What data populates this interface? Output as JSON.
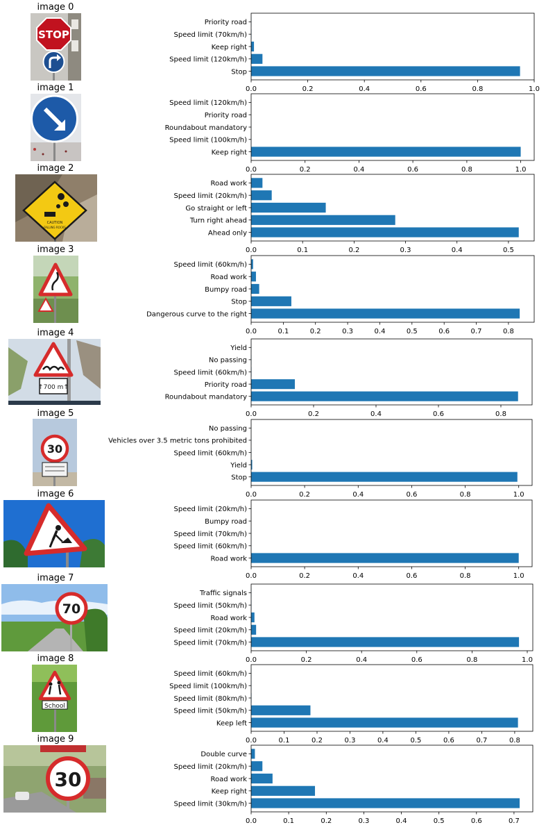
{
  "chart_data": [
    {
      "type": "bar",
      "orientation": "horizontal",
      "image_title": "image 0",
      "categories": [
        "Stop",
        "Speed limit (120km/h)",
        "Keep right",
        "Speed limit (70km/h)",
        "Priority road"
      ],
      "values": [
        0.95,
        0.04,
        0.01,
        0.001,
        0.0005
      ],
      "xlim": [
        0,
        1.0
      ],
      "xticks": [
        "0.0",
        "0.2",
        "0.4",
        "0.6",
        "0.8",
        "1.0"
      ],
      "xtick_values": [
        0.0,
        0.2,
        0.4,
        0.6,
        0.8,
        1.0
      ],
      "bar_color": "#1f77b4",
      "photo": "stop-sign-photo"
    },
    {
      "type": "bar",
      "orientation": "horizontal",
      "image_title": "image 1",
      "categories": [
        "Keep right",
        "Speed limit (100km/h)",
        "Roundabout mandatory",
        "Priority road",
        "Speed limit (120km/h)"
      ],
      "values": [
        1.0,
        0.0003,
        0.0002,
        0.0001,
        0.0001
      ],
      "xlim": [
        0,
        1.05
      ],
      "xticks": [
        "0.0",
        "0.2",
        "0.4",
        "0.6",
        "0.8",
        "1.0"
      ],
      "xtick_values": [
        0.0,
        0.2,
        0.4,
        0.6,
        0.8,
        1.0
      ],
      "bar_color": "#1f77b4",
      "photo": "keep-right-sign-photo"
    },
    {
      "type": "bar",
      "orientation": "horizontal",
      "image_title": "image 2",
      "categories": [
        "Ahead only",
        "Turn right ahead",
        "Go straight or left",
        "Speed limit (20km/h)",
        "Road work"
      ],
      "values": [
        0.52,
        0.28,
        0.145,
        0.04,
        0.022
      ],
      "xlim": [
        0,
        0.55
      ],
      "xticks": [
        "0.0",
        "0.1",
        "0.2",
        "0.3",
        "0.4",
        "0.5"
      ],
      "xtick_values": [
        0.0,
        0.1,
        0.2,
        0.3,
        0.4,
        0.5
      ],
      "bar_color": "#1f77b4",
      "photo": "falling-rocks-sign-photo"
    },
    {
      "type": "bar",
      "orientation": "horizontal",
      "image_title": "image 3",
      "categories": [
        "Dangerous curve to the right",
        "Stop",
        "Bumpy road",
        "Road work",
        "Speed limit (60km/h)"
      ],
      "values": [
        0.835,
        0.125,
        0.025,
        0.015,
        0.006
      ],
      "xlim": [
        0,
        0.88
      ],
      "xticks": [
        "0.0",
        "0.1",
        "0.2",
        "0.3",
        "0.4",
        "0.5",
        "0.6",
        "0.7",
        "0.8"
      ],
      "xtick_values": [
        0.0,
        0.1,
        0.2,
        0.3,
        0.4,
        0.5,
        0.6,
        0.7,
        0.8
      ],
      "bar_color": "#1f77b4",
      "photo": "dangerous-curve-sign-photo"
    },
    {
      "type": "bar",
      "orientation": "horizontal",
      "image_title": "image 4",
      "categories": [
        "Roundabout mandatory",
        "Priority road",
        "Speed limit (60km/h)",
        "No passing",
        "Yield"
      ],
      "values": [
        0.855,
        0.14,
        0.001,
        0.0005,
        0.0003
      ],
      "xlim": [
        0,
        0.9
      ],
      "xticks": [
        "0.0",
        "0.2",
        "0.4",
        "0.6",
        "0.8"
      ],
      "xtick_values": [
        0.0,
        0.2,
        0.4,
        0.6,
        0.8
      ],
      "bar_color": "#1f77b4",
      "photo": "bumpy-road-sign-photo"
    },
    {
      "type": "bar",
      "orientation": "horizontal",
      "image_title": "image 5",
      "categories": [
        "Stop",
        "Yield",
        "Speed limit (60km/h)",
        "Vehicles over 3.5 metric tons prohibited",
        "No passing"
      ],
      "values": [
        0.995,
        0.004,
        0.0005,
        0.0003,
        0.0002
      ],
      "xlim": [
        0,
        1.05
      ],
      "xticks": [
        "0.0",
        "0.2",
        "0.4",
        "0.6",
        "0.8",
        "1.0"
      ],
      "xtick_values": [
        0.0,
        0.2,
        0.4,
        0.6,
        0.8,
        1.0
      ],
      "bar_color": "#1f77b4",
      "photo": "speed-30-sign-photo"
    },
    {
      "type": "bar",
      "orientation": "horizontal",
      "image_title": "image 6",
      "categories": [
        "Road work",
        "Speed limit (60km/h)",
        "Speed limit (70km/h)",
        "Bumpy road",
        "Speed limit (20km/h)"
      ],
      "values": [
        1.0,
        0.0003,
        0.0002,
        0.0001,
        0.0001
      ],
      "xlim": [
        0,
        1.05
      ],
      "xticks": [
        "0.0",
        "0.2",
        "0.4",
        "0.6",
        "0.8",
        "1.0"
      ],
      "xtick_values": [
        0.0,
        0.2,
        0.4,
        0.6,
        0.8,
        1.0
      ],
      "bar_color": "#1f77b4",
      "photo": "road-work-sign-photo"
    },
    {
      "type": "bar",
      "orientation": "horizontal",
      "image_title": "image 7",
      "categories": [
        "Speed limit (70km/h)",
        "Speed limit (20km/h)",
        "Road work",
        "Speed limit (50km/h)",
        "Traffic signals"
      ],
      "values": [
        0.97,
        0.018,
        0.012,
        0.001,
        0.0005
      ],
      "xlim": [
        0,
        1.02
      ],
      "xticks": [
        "0.0",
        "0.2",
        "0.4",
        "0.6",
        "0.8",
        "1.0"
      ],
      "xtick_values": [
        0.0,
        0.2,
        0.4,
        0.6,
        0.8,
        1.0
      ],
      "bar_color": "#1f77b4",
      "photo": "speed-70-sign-photo"
    },
    {
      "type": "bar",
      "orientation": "horizontal",
      "image_title": "image 8",
      "categories": [
        "Keep left",
        "Speed limit (50km/h)",
        "Speed limit (80km/h)",
        "Speed limit (100km/h)",
        "Speed limit (60km/h)"
      ],
      "values": [
        0.81,
        0.18,
        0.001,
        0.0005,
        0.0003
      ],
      "xlim": [
        0,
        0.855
      ],
      "xticks": [
        "0.0",
        "0.1",
        "0.2",
        "0.3",
        "0.4",
        "0.5",
        "0.6",
        "0.7",
        "0.8"
      ],
      "xtick_values": [
        0.0,
        0.1,
        0.2,
        0.3,
        0.4,
        0.5,
        0.6,
        0.7,
        0.8
      ],
      "bar_color": "#1f77b4",
      "photo": "school-sign-photo"
    },
    {
      "type": "bar",
      "orientation": "horizontal",
      "image_title": "image 9",
      "categories": [
        "Speed limit (30km/h)",
        "Keep right",
        "Road work",
        "Speed limit (20km/h)",
        "Double curve"
      ],
      "values": [
        0.715,
        0.17,
        0.057,
        0.03,
        0.01
      ],
      "xlim": [
        0,
        0.75
      ],
      "xticks": [
        "0.0",
        "0.1",
        "0.2",
        "0.3",
        "0.4",
        "0.5",
        "0.6",
        "0.7"
      ],
      "xtick_values": [
        0.0,
        0.1,
        0.2,
        0.3,
        0.4,
        0.5,
        0.6,
        0.7
      ],
      "bar_color": "#1f77b4",
      "photo": "speed-30-street-sign-photo"
    }
  ]
}
